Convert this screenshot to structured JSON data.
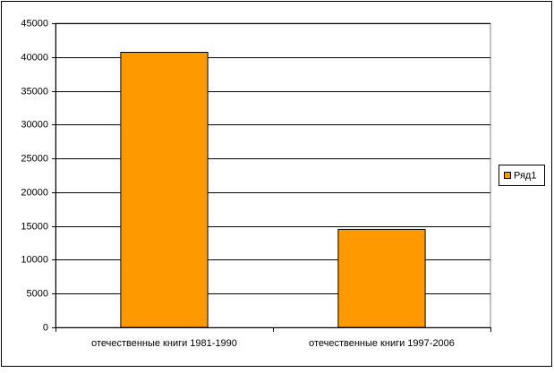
{
  "chart_data": {
    "type": "bar",
    "categories": [
      "отечественные книги 1981-1990",
      "отечественные книги 1997-2006"
    ],
    "series": [
      {
        "name": "Ряд1",
        "color": "#ff9900",
        "values": [
          40700,
          14500
        ]
      }
    ],
    "ylim": [
      0,
      45000
    ],
    "yticks": [
      0,
      5000,
      10000,
      15000,
      20000,
      25000,
      30000,
      35000,
      40000,
      45000
    ],
    "grid": true,
    "legend": "right"
  }
}
